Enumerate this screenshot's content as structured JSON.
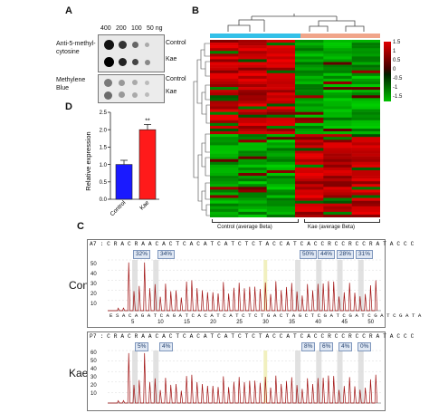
{
  "panels": {
    "a": "A",
    "b": "B",
    "c": "C",
    "d": "D"
  },
  "panel_a": {
    "amounts": [
      "400",
      "200",
      "100",
      "50 ng"
    ],
    "blot1_title": "Anti-5-methyl-\ncytosine",
    "blot2_title": "Methylene\nBlue",
    "rows": [
      "Control",
      "Kae"
    ]
  },
  "panel_b": {
    "legend_ticks": [
      "1.5",
      "1",
      "0.5",
      "0",
      "-0.5",
      "-1",
      "-1.5"
    ],
    "group_labels": [
      "Control (average Beta)",
      "Kae (average Beta)"
    ],
    "colors": {
      "high": "#e00000",
      "low": "#00c000",
      "mid": "#000000",
      "control_bar": "#33c0e8",
      "kae_bar": "#f0a58a"
    }
  },
  "chart_data": {
    "type": "bar",
    "categories": [
      "Control",
      "Kae"
    ],
    "values": [
      1.0,
      2.0
    ],
    "errors": [
      0.12,
      0.15
    ],
    "ylabel": "Relative expression",
    "ylim": [
      0,
      2.5
    ],
    "yticks": [
      "0.0",
      "0.5",
      "1.0",
      "1.5",
      "2.0",
      "2.5"
    ],
    "annotation": "**",
    "colors": [
      "#1a1aff",
      "#ff1a1a"
    ]
  },
  "panel_c": {
    "con": {
      "sample_label": "Con",
      "header": "A7 : C R A C R A A C A C T C A C A T C A T C T C T A C C A T C A C C R C C R C C R A T A C C C",
      "percents": [
        "32%",
        "34%",
        "50%",
        "44%",
        "28%",
        "31%"
      ],
      "yticks": [
        "50",
        "40",
        "30",
        "20",
        "10"
      ],
      "basecalls": "E S A C A G A T C A G A T C A C A T C A T C T C T G A C T A G C T C G A T C G A T C G A T C G A T A",
      "xticks": [
        "5",
        "10",
        "15",
        "20",
        "25",
        "30",
        "35",
        "40",
        "45",
        "50"
      ]
    },
    "kae": {
      "sample_label": "Kae",
      "header": "P7 : C R A C R A A C A C T C A C A T C A T C T C T A C C A T C A C C R C C R C C R A T A C C C",
      "percents": [
        "5%",
        "4%",
        "8%",
        "6%",
        "4%",
        "0%"
      ],
      "yticks": [
        "60",
        "50",
        "40",
        "30",
        "20",
        "10"
      ],
      "basecalls": "E S A C A G A T C A G A T C A C A T C A T C T C T G A C T A G C T C G A T C G A T C G A T C G A T A",
      "xticks": [
        "5",
        "10",
        "15",
        "20",
        "25",
        "30",
        "35",
        "40",
        "45",
        "50"
      ]
    }
  }
}
